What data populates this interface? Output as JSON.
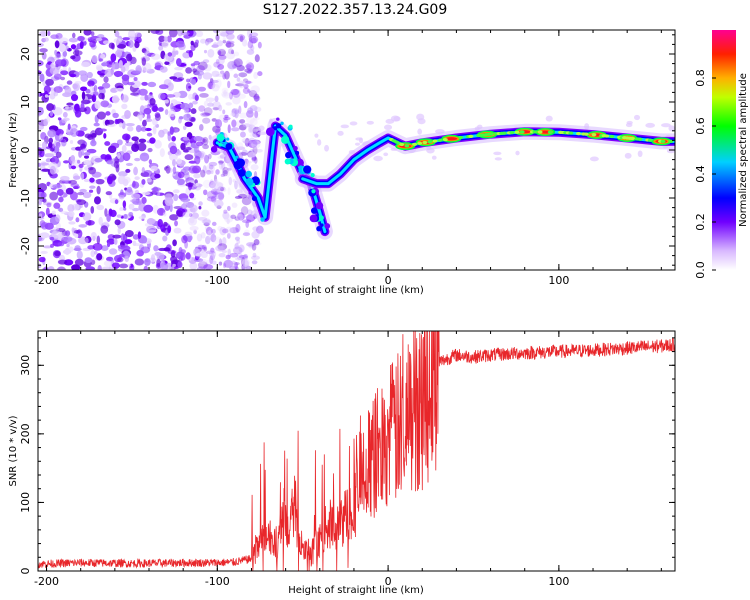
{
  "title": "S127.2022.357.13.24.G09",
  "chart_data": [
    {
      "type": "heatmap",
      "xlabel": "Height of straight line (km)",
      "ylabel": "Frequency (Hz)",
      "xlim": [
        -205,
        168
      ],
      "ylim": [
        -25,
        25
      ],
      "x_ticks": [
        -200,
        -100,
        0,
        100
      ],
      "y_ticks": [
        -20,
        -10,
        0,
        10,
        20
      ],
      "colorbar": {
        "label": "Normalized spectral amplitude",
        "range": [
          0,
          1
        ],
        "ticks": [
          0.0,
          0.2,
          0.4,
          0.6,
          0.8
        ],
        "colors": [
          "#ffffff",
          "#7000ff",
          "#0000ff",
          "#00ffff",
          "#00ff00",
          "#ffff00",
          "#ff0000",
          "#ff00a0"
        ]
      },
      "signal_track": [
        {
          "x": -100,
          "y": 1.5
        },
        {
          "x": -93,
          "y": 0.5
        },
        {
          "x": -88,
          "y": -3
        },
        {
          "x": -84,
          "y": -6
        },
        {
          "x": -80,
          "y": -8
        },
        {
          "x": -76,
          "y": -10
        },
        {
          "x": -72,
          "y": -14
        },
        {
          "x": -66,
          "y": 5
        },
        {
          "x": -60,
          "y": 3
        },
        {
          "x": -55,
          "y": -1
        },
        {
          "x": -50,
          "y": -5
        },
        {
          "x": -45,
          "y": -7
        },
        {
          "x": -40,
          "y": -13
        },
        {
          "x": -37,
          "y": -17
        },
        {
          "x": -50,
          "y": -6
        },
        {
          "x": -42,
          "y": -7
        },
        {
          "x": -35,
          "y": -7
        },
        {
          "x": -28,
          "y": -5
        },
        {
          "x": -20,
          "y": -2
        },
        {
          "x": -12,
          "y": 0
        },
        {
          "x": -5,
          "y": 1.5
        },
        {
          "x": 0,
          "y": 2.5
        },
        {
          "x": 10,
          "y": 0.8
        },
        {
          "x": 20,
          "y": 1.5
        },
        {
          "x": 40,
          "y": 2.5
        },
        {
          "x": 60,
          "y": 3.3
        },
        {
          "x": 80,
          "y": 3.8
        },
        {
          "x": 100,
          "y": 3.7
        },
        {
          "x": 120,
          "y": 3.2
        },
        {
          "x": 140,
          "y": 2.5
        },
        {
          "x": 160,
          "y": 1.8
        },
        {
          "x": 168,
          "y": 1.8
        }
      ],
      "noise_region_x": [
        -205,
        -85
      ]
    },
    {
      "type": "line",
      "xlabel": "Height of straight line (km)",
      "ylabel": "SNR (10 * v/v)",
      "xlim": [
        -205,
        168
      ],
      "ylim": [
        0,
        350
      ],
      "x_ticks": [
        -200,
        -100,
        0,
        100
      ],
      "y_ticks": [
        0,
        100,
        200,
        300
      ],
      "series": [
        {
          "color": "#e8262a",
          "x": [
            -205,
            -180,
            -150,
            -120,
            -100,
            -90,
            -80,
            -75,
            -70,
            -65,
            -62,
            -58,
            -55,
            -50,
            -45,
            -40,
            -35,
            -30,
            -25,
            -20,
            -15,
            -10,
            -5,
            0,
            5,
            10,
            15,
            20,
            25,
            30,
            35,
            40,
            50,
            60,
            80,
            100,
            120,
            140,
            160,
            168
          ],
          "y": [
            10,
            12,
            11,
            12,
            12,
            13,
            18,
            40,
            55,
            30,
            90,
            45,
            100,
            30,
            20,
            45,
            70,
            60,
            80,
            100,
            140,
            160,
            180,
            195,
            205,
            215,
            240,
            255,
            285,
            305,
            310,
            315,
            312,
            315,
            318,
            320,
            322,
            325,
            328,
            330
          ]
        }
      ]
    }
  ]
}
